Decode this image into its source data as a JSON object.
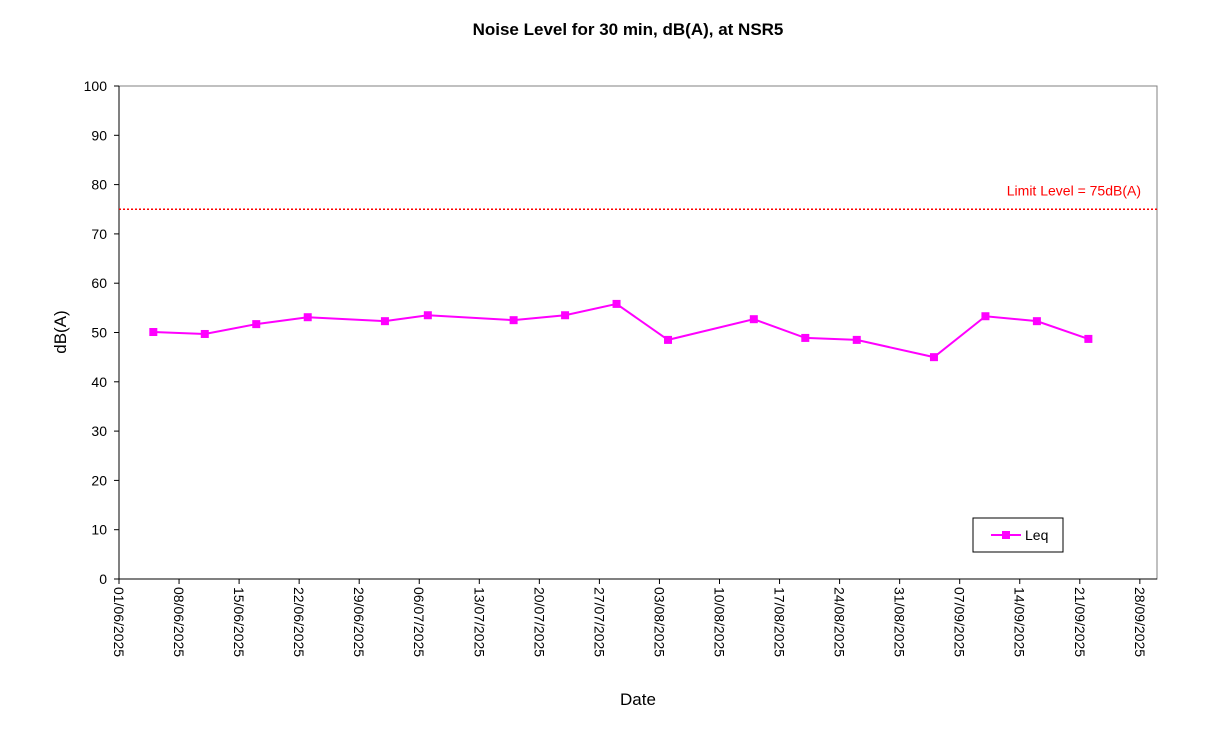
{
  "chart_data": {
    "type": "line",
    "title": "Noise Level for 30 min, dB(A), at NSR5",
    "xlabel": "Date",
    "ylabel": "dB(A)",
    "ylim": [
      0,
      100
    ],
    "yticks": [
      0,
      10,
      20,
      30,
      40,
      50,
      60,
      70,
      80,
      90,
      100
    ],
    "xlim": [
      "01/06/2025",
      "30/09/2025"
    ],
    "xticks": [
      "01/06/2025",
      "08/06/2025",
      "15/06/2025",
      "22/06/2025",
      "29/06/2025",
      "06/07/2025",
      "13/07/2025",
      "20/07/2025",
      "27/07/2025",
      "03/08/2025",
      "10/08/2025",
      "17/08/2025",
      "24/08/2025",
      "31/08/2025",
      "07/09/2025",
      "14/09/2025",
      "21/09/2025",
      "28/09/2025"
    ],
    "grid": false,
    "legend_position": "bottom-right",
    "series": [
      {
        "name": "Leq",
        "color": "#ff00ff",
        "marker": "square",
        "x": [
          "05/06/2025",
          "11/06/2025",
          "17/06/2025",
          "23/06/2025",
          "02/07/2025",
          "07/07/2025",
          "17/07/2025",
          "23/07/2025",
          "29/07/2025",
          "04/08/2025",
          "14/08/2025",
          "20/08/2025",
          "26/08/2025",
          "04/09/2025",
          "10/09/2025",
          "16/09/2025",
          "22/09/2025"
        ],
        "y": [
          50.1,
          49.7,
          51.7,
          53.1,
          52.3,
          53.5,
          52.5,
          53.5,
          55.8,
          48.5,
          52.7,
          48.9,
          48.5,
          45.0,
          53.3,
          52.3,
          48.7
        ]
      }
    ],
    "limit_line": {
      "value": 75,
      "label": "Limit Level = 75dB(A)",
      "color": "#ff0000",
      "style": "dotted"
    }
  }
}
